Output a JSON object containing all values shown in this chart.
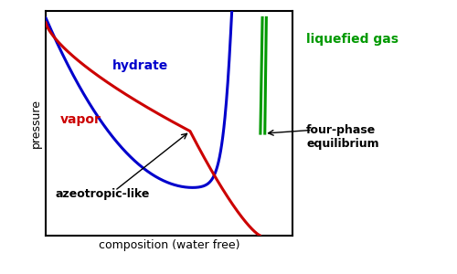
{
  "xlim": [
    0,
    1
  ],
  "ylim": [
    0,
    1
  ],
  "hydrate_color": "#0000cc",
  "vapor_color": "#cc0000",
  "liquefied_color": "#009900",
  "linewidth": 2.2,
  "xlabel": "composition (water free)",
  "ylabel": "pressure",
  "label_hydrate": "hydrate",
  "label_vapor": "vapor",
  "label_liquefied": "liquefied gas",
  "label_azeotropic": "azeotropic-like",
  "label_fourphase": "four-phase\nequilibrium",
  "background_color": "#ffffff",
  "axis_box_color": "#000000"
}
